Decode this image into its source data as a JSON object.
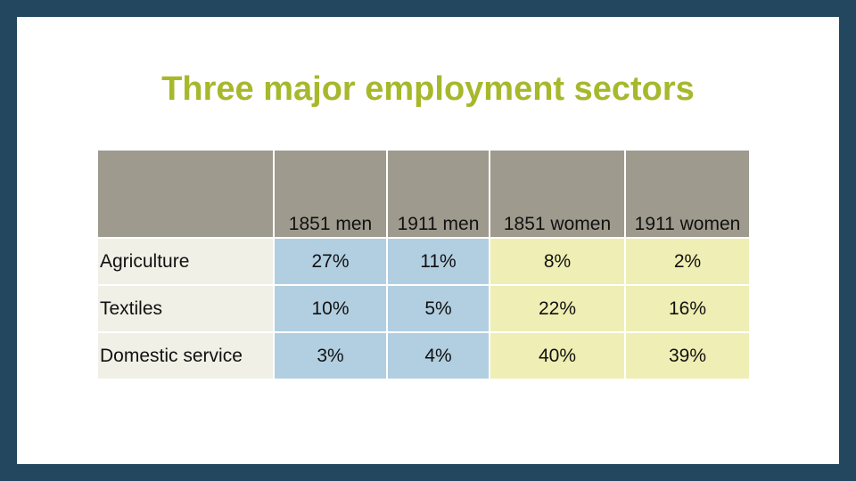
{
  "slide": {
    "title": "Three major employment sectors"
  },
  "colors": {
    "frame": "#22475f",
    "title": "#a7b82c",
    "header": "#9e9a8d",
    "label_column": "#f0f0e7",
    "men_columns": "#b2cfe1",
    "women_columns": "#efeeb4"
  },
  "table": {
    "columns": [
      "",
      "1851 men",
      "1911 men",
      "1851 women",
      "1911 women"
    ],
    "rows": [
      {
        "sector": "Agriculture",
        "values": [
          "27%",
          "11%",
          "8%",
          "2%"
        ]
      },
      {
        "sector": "Textiles",
        "values": [
          "10%",
          "5%",
          "22%",
          "16%"
        ]
      },
      {
        "sector": "Domestic service",
        "values": [
          "3%",
          "4%",
          "40%",
          "39%"
        ]
      }
    ]
  }
}
